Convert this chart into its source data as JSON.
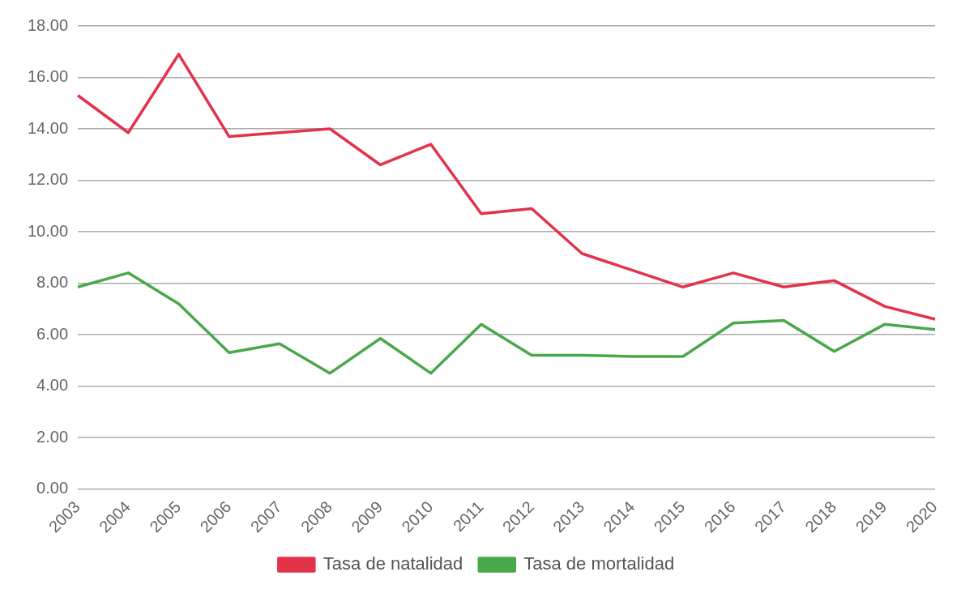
{
  "chart_data": {
    "type": "line",
    "categories": [
      "2003",
      "2004",
      "2005",
      "2006",
      "2007",
      "2008",
      "2009",
      "2010",
      "2011",
      "2012",
      "2013",
      "2014",
      "2015",
      "2016",
      "2017",
      "2018",
      "2019",
      "2020"
    ],
    "series": [
      {
        "name": "Tasa de natalidad",
        "color": "#e2334b",
        "values": [
          15.3,
          13.85,
          16.9,
          13.7,
          13.85,
          14.0,
          12.6,
          13.4,
          10.7,
          10.9,
          9.15,
          8.5,
          7.85,
          8.4,
          7.85,
          8.1,
          7.1,
          6.6
        ]
      },
      {
        "name": "Tasa de mortalidad",
        "color": "#4aa84a",
        "values": [
          7.85,
          8.4,
          7.2,
          5.3,
          5.65,
          4.5,
          5.85,
          4.5,
          6.4,
          5.2,
          5.2,
          5.15,
          5.15,
          6.45,
          6.55,
          5.35,
          6.4,
          6.2
        ]
      }
    ],
    "ylim": [
      0,
      18
    ],
    "yticks": [
      {
        "value": 0,
        "label": "0.00"
      },
      {
        "value": 2,
        "label": "2.00"
      },
      {
        "value": 4,
        "label": "4.00"
      },
      {
        "value": 6,
        "label": "6.00"
      },
      {
        "value": 8,
        "label": "8.00"
      },
      {
        "value": 10,
        "label": "10.00"
      },
      {
        "value": 12,
        "label": "12.00"
      },
      {
        "value": 14,
        "label": "14.00"
      },
      {
        "value": 16,
        "label": "16.00"
      },
      {
        "value": 18,
        "label": "18.00"
      }
    ],
    "grid": "y",
    "legend": "bottom",
    "marker": "none",
    "line_style": "solid"
  }
}
